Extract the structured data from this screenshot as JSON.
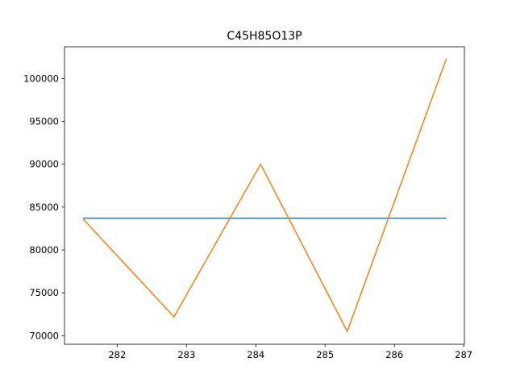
{
  "chart_data": {
    "type": "line",
    "title": "C45H85O13P",
    "xlabel": "",
    "ylabel": "",
    "xlim": [
      281.24,
      287.01
    ],
    "ylim": [
      69000,
      103700
    ],
    "grid": false,
    "x_ticks": [
      282,
      283,
      284,
      285,
      286,
      287
    ],
    "y_ticks": [
      70000,
      75000,
      80000,
      85000,
      90000,
      95000,
      100000
    ],
    "series": [
      {
        "color": "#1f77b4",
        "x": [
          281.51,
          286.75
        ],
        "y": [
          83700,
          83700
        ]
      },
      {
        "color": "#ff7f0e",
        "x": [
          281.51,
          282.82,
          284.07,
          285.32,
          286.75
        ],
        "y": [
          83600,
          72200,
          90000,
          70500,
          102300
        ]
      }
    ]
  }
}
